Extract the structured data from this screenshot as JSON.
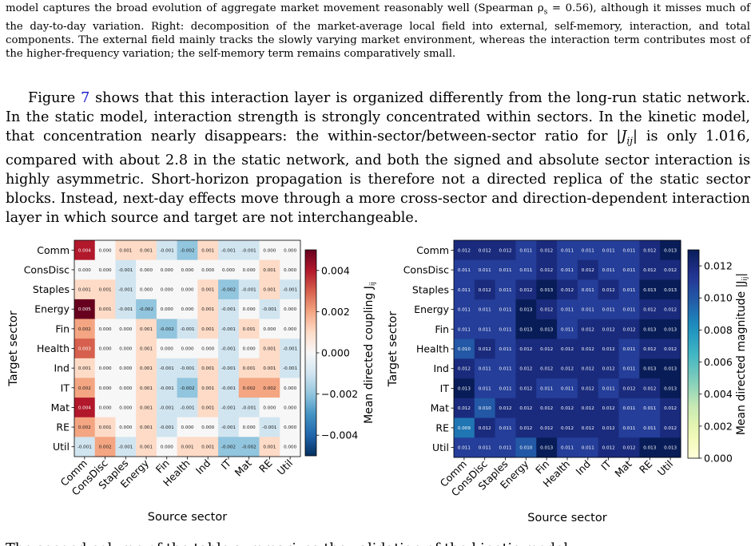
{
  "caption": {
    "line1": "model captures the broad evolution of aggregate market movement reasonably well (Spearman ρ",
    "rho_sub": "s",
    "line1_end": " = 0.56), although it misses",
    "rest": "much of the day-to-day variation. Right: decomposition of the market-average local field into external, self-memory, interaction, and total components. The external field mainly tracks the slowly varying market environment, whereas the interaction term contributes most of the higher-frequency variation; the self-memory term remains comparatively small."
  },
  "paragraph": {
    "prefix": "Figure ",
    "fig_ref": "7",
    "text_a": " shows that this interaction layer is organized differently from the long-run static network. In the static model, interaction strength is strongly concentrated within sectors. In the kinetic model, that concentration nearly disappears: the within-sector/between-sector ratio for |",
    "jij": "J",
    "jij_sub": "ij",
    "text_b": "| is only 1.016, compared with about 2.8 in the static network, and both the signed and absolute sector interaction is highly asymmetric. Short-horizon propagation is therefore not a directed replica of the static sector blocks. Instead, next-day effects move through a more cross-sector and direction-dependent interaction layer in which source and target are not interchangeable."
  },
  "footer_text": "The second column of the table summarizes the validation of the kinetic model",
  "chart_data": [
    {
      "type": "heatmap",
      "xlabel": "Source sector",
      "ylabel": "Target sector",
      "colorbar_label": "Mean directed coupling J",
      "colorbar_label_sub": "ij",
      "colormap": "RdBu_r",
      "vlim": [
        -0.005,
        0.005
      ],
      "colorbar_ticks": [
        "0.004",
        "0.002",
        "0.000",
        "−0.002",
        "−0.004"
      ],
      "colorbar_tick_values": [
        0.004,
        0.002,
        0.0,
        -0.002,
        -0.004
      ],
      "x_categories": [
        "Comm",
        "ConsDisc",
        "Staples",
        "Energy",
        "Fin",
        "Health",
        "Ind",
        "IT",
        "Mat",
        "RE",
        "Util"
      ],
      "y_categories": [
        "Comm",
        "ConsDisc",
        "Staples",
        "Energy",
        "Fin",
        "Health",
        "Ind",
        "IT",
        "Mat",
        "RE",
        "Util"
      ],
      "values": [
        [
          0.004,
          0.0,
          0.001,
          0.001,
          -0.001,
          -0.002,
          0.001,
          -0.001,
          -0.001,
          0.0,
          0.0
        ],
        [
          0.0,
          0.0,
          -0.001,
          0.0,
          0.0,
          0.0,
          0.0,
          0.0,
          0.0,
          0.001,
          0.0
        ],
        [
          0.001,
          0.001,
          -0.001,
          0.0,
          0.0,
          0.0,
          0.001,
          -0.002,
          -0.001,
          0.001,
          -0.001
        ],
        [
          0.005,
          0.001,
          -0.001,
          -0.002,
          0.0,
          0.0,
          0.001,
          -0.001,
          0.0,
          -0.001,
          0.0
        ],
        [
          0.002,
          0.0,
          0.0,
          0.001,
          -0.002,
          -0.001,
          0.001,
          -0.001,
          0.001,
          0.0,
          0.0
        ],
        [
          0.003,
          0.0,
          0.0,
          0.001,
          0.0,
          0.0,
          0.0,
          -0.001,
          0.0,
          0.001,
          -0.001
        ],
        [
          0.001,
          0.0,
          0.0,
          0.001,
          -0.001,
          -0.001,
          0.001,
          -0.001,
          0.001,
          0.001,
          -0.001
        ],
        [
          0.002,
          0.0,
          0.0,
          0.001,
          -0.001,
          -0.002,
          0.001,
          -0.001,
          0.002,
          0.002,
          0.0
        ],
        [
          0.004,
          0.0,
          0.0,
          0.001,
          -0.001,
          -0.001,
          0.001,
          -0.001,
          -0.001,
          0.0,
          0.0
        ],
        [
          0.002,
          0.001,
          0.0,
          0.001,
          -0.001,
          0.0,
          0.0,
          -0.001,
          0.0,
          -0.001,
          0.0
        ],
        [
          -0.001,
          0.002,
          -0.001,
          0.001,
          0.0,
          0.001,
          0.001,
          -0.002,
          -0.002,
          0.001,
          0.0
        ]
      ]
    },
    {
      "type": "heatmap",
      "xlabel": "Source sector",
      "ylabel": "Target sector",
      "colorbar_label": "Mean directed magnitude |J",
      "colorbar_label_sub": "ij",
      "colorbar_label_end": "|",
      "colormap": "YlGnBu",
      "vlim": [
        0.0,
        0.013
      ],
      "colorbar_ticks": [
        "0.012",
        "0.010",
        "0.008",
        "0.006",
        "0.004",
        "0.002",
        "0.000"
      ],
      "colorbar_tick_values": [
        0.012,
        0.01,
        0.008,
        0.006,
        0.004,
        0.002,
        0.0
      ],
      "x_categories": [
        "Comm",
        "ConsDisc",
        "Staples",
        "Energy",
        "Fin",
        "Health",
        "Ind",
        "IT",
        "Mat",
        "RE",
        "Util"
      ],
      "y_categories": [
        "Comm",
        "ConsDisc",
        "Staples",
        "Energy",
        "Fin",
        "Health",
        "Ind",
        "IT",
        "Mat",
        "RE",
        "Util"
      ],
      "values": [
        [
          0.012,
          0.012,
          0.012,
          0.011,
          0.012,
          0.011,
          0.011,
          0.011,
          0.011,
          0.012,
          0.013
        ],
        [
          0.011,
          0.011,
          0.011,
          0.011,
          0.012,
          0.011,
          0.012,
          0.011,
          0.011,
          0.012,
          0.012
        ],
        [
          0.011,
          0.012,
          0.011,
          0.012,
          0.013,
          0.012,
          0.011,
          0.012,
          0.011,
          0.013,
          0.013
        ],
        [
          0.011,
          0.011,
          0.011,
          0.013,
          0.012,
          0.011,
          0.011,
          0.011,
          0.011,
          0.012,
          0.012
        ],
        [
          0.011,
          0.011,
          0.011,
          0.013,
          0.013,
          0.011,
          0.012,
          0.012,
          0.012,
          0.013,
          0.013
        ],
        [
          0.01,
          0.012,
          0.011,
          0.012,
          0.012,
          0.012,
          0.012,
          0.012,
          0.011,
          0.012,
          0.012
        ],
        [
          0.012,
          0.011,
          0.011,
          0.012,
          0.012,
          0.012,
          0.012,
          0.012,
          0.011,
          0.013,
          0.013
        ],
        [
          0.013,
          0.011,
          0.011,
          0.012,
          0.011,
          0.011,
          0.012,
          0.011,
          0.012,
          0.012,
          0.013
        ],
        [
          0.012,
          0.01,
          0.012,
          0.012,
          0.012,
          0.012,
          0.012,
          0.012,
          0.011,
          0.011,
          0.012
        ],
        [
          0.009,
          0.012,
          0.011,
          0.012,
          0.012,
          0.012,
          0.012,
          0.012,
          0.011,
          0.011,
          0.012
        ],
        [
          0.011,
          0.011,
          0.011,
          0.01,
          0.013,
          0.011,
          0.011,
          0.012,
          0.012,
          0.013,
          0.013
        ]
      ]
    }
  ]
}
